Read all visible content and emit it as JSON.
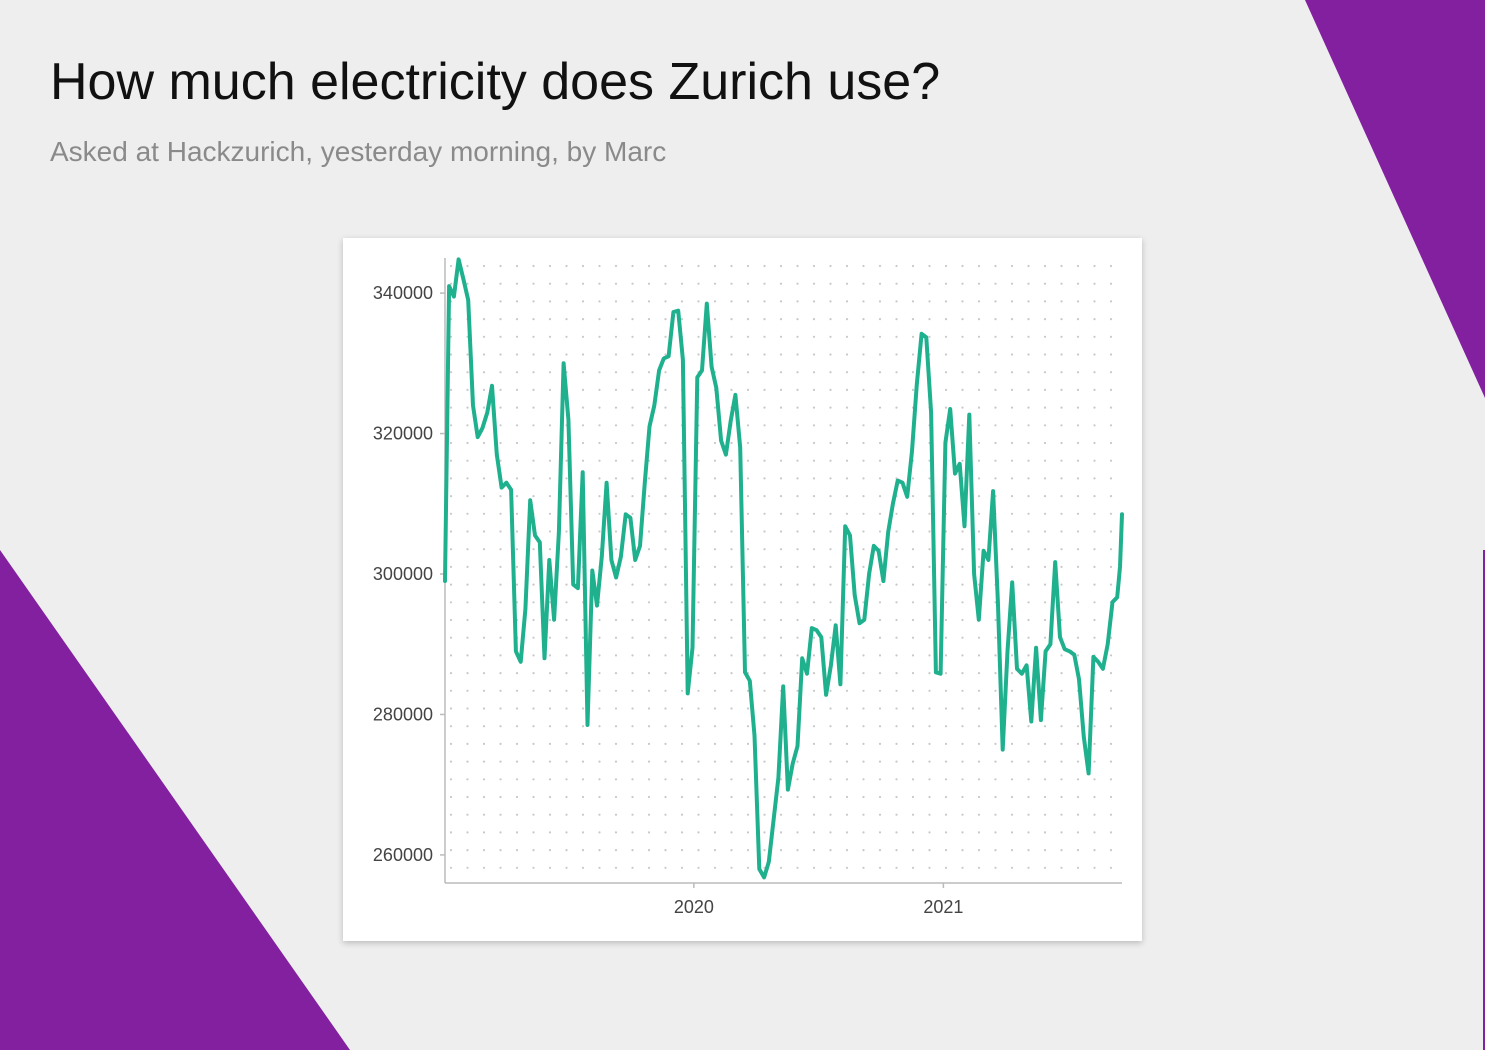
{
  "header": {
    "title": "How much electricity does Zurich use?",
    "subtitle": "Asked at Hackzurich, yesterday morning, by Marc"
  },
  "colors": {
    "background": "#eeeeee",
    "accent_purple": "#8220a0",
    "line": "#1fb08e",
    "grid_dots": "#c8c8c8"
  },
  "chart_data": {
    "type": "line",
    "title": "",
    "xlabel": "",
    "ylabel": "",
    "grid": "dotted",
    "x_ticks": [
      "2020",
      "2021"
    ],
    "y_ticks": [
      "260000",
      "280000",
      "300000",
      "320000",
      "340000"
    ],
    "ylim": [
      256000,
      345000
    ],
    "xlim": [
      "2019-01-01",
      "2021-09-20"
    ],
    "series": [
      {
        "values": [
          [
            "2019-01-01",
            299000
          ],
          [
            "2019-01-07",
            341000
          ],
          [
            "2019-01-14",
            339500
          ],
          [
            "2019-01-21",
            344800
          ],
          [
            "2019-01-28",
            342000
          ],
          [
            "2019-02-04",
            339000
          ],
          [
            "2019-02-11",
            324000
          ],
          [
            "2019-02-18",
            319500
          ],
          [
            "2019-02-25",
            320800
          ],
          [
            "2019-03-04",
            323000
          ],
          [
            "2019-03-11",
            326800
          ],
          [
            "2019-03-18",
            317000
          ],
          [
            "2019-03-25",
            312300
          ],
          [
            "2019-04-01",
            313000
          ],
          [
            "2019-04-08",
            312000
          ],
          [
            "2019-04-15",
            289000
          ],
          [
            "2019-04-22",
            287500
          ],
          [
            "2019-04-29",
            295000
          ],
          [
            "2019-05-06",
            310500
          ],
          [
            "2019-05-13",
            305500
          ],
          [
            "2019-05-20",
            304500
          ],
          [
            "2019-05-27",
            288000
          ],
          [
            "2019-06-03",
            302000
          ],
          [
            "2019-06-10",
            293500
          ],
          [
            "2019-06-17",
            306000
          ],
          [
            "2019-06-24",
            330000
          ],
          [
            "2019-07-01",
            322000
          ],
          [
            "2019-07-08",
            298500
          ],
          [
            "2019-07-15",
            298000
          ],
          [
            "2019-07-22",
            314500
          ],
          [
            "2019-07-29",
            278500
          ],
          [
            "2019-08-05",
            300500
          ],
          [
            "2019-08-12",
            295500
          ],
          [
            "2019-08-19",
            302500
          ],
          [
            "2019-08-26",
            313000
          ],
          [
            "2019-09-02",
            302000
          ],
          [
            "2019-09-09",
            299500
          ],
          [
            "2019-09-16",
            302500
          ],
          [
            "2019-09-23",
            308500
          ],
          [
            "2019-09-30",
            308000
          ],
          [
            "2019-10-07",
            302000
          ],
          [
            "2019-10-14",
            304000
          ],
          [
            "2019-10-21",
            313000
          ],
          [
            "2019-10-28",
            321000
          ],
          [
            "2019-11-04",
            324000
          ],
          [
            "2019-11-11",
            329000
          ],
          [
            "2019-11-18",
            330700
          ],
          [
            "2019-11-25",
            331000
          ],
          [
            "2019-12-02",
            337300
          ],
          [
            "2019-12-09",
            337500
          ],
          [
            "2019-12-16",
            330500
          ],
          [
            "2019-12-23",
            283000
          ],
          [
            "2019-12-30",
            289500
          ],
          [
            "2020-01-06",
            328000
          ],
          [
            "2020-01-13",
            329000
          ],
          [
            "2020-01-20",
            338500
          ],
          [
            "2020-01-27",
            329500
          ],
          [
            "2020-02-03",
            326500
          ],
          [
            "2020-02-10",
            319000
          ],
          [
            "2020-02-17",
            317000
          ],
          [
            "2020-02-24",
            321800
          ],
          [
            "2020-03-02",
            325500
          ],
          [
            "2020-03-09",
            318000
          ],
          [
            "2020-03-16",
            286000
          ],
          [
            "2020-03-23",
            284800
          ],
          [
            "2020-03-30",
            277000
          ],
          [
            "2020-04-06",
            258000
          ],
          [
            "2020-04-13",
            256800
          ],
          [
            "2020-04-20",
            259000
          ],
          [
            "2020-04-27",
            265000
          ],
          [
            "2020-05-04",
            271000
          ],
          [
            "2020-05-11",
            284000
          ],
          [
            "2020-05-18",
            269300
          ],
          [
            "2020-05-25",
            273000
          ],
          [
            "2020-06-01",
            275500
          ],
          [
            "2020-06-08",
            288000
          ],
          [
            "2020-06-15",
            285800
          ],
          [
            "2020-06-22",
            292300
          ],
          [
            "2020-06-29",
            292000
          ],
          [
            "2020-07-06",
            291000
          ],
          [
            "2020-07-13",
            282800
          ],
          [
            "2020-07-20",
            287000
          ],
          [
            "2020-07-27",
            292700
          ],
          [
            "2020-08-03",
            284300
          ],
          [
            "2020-08-10",
            306800
          ],
          [
            "2020-08-17",
            305500
          ],
          [
            "2020-08-24",
            297000
          ],
          [
            "2020-08-31",
            293000
          ],
          [
            "2020-09-07",
            293500
          ],
          [
            "2020-09-14",
            300000
          ],
          [
            "2020-09-21",
            304000
          ],
          [
            "2020-09-28",
            303300
          ],
          [
            "2020-10-05",
            299000
          ],
          [
            "2020-10-12",
            306000
          ],
          [
            "2020-10-19",
            310000
          ],
          [
            "2020-10-26",
            313300
          ],
          [
            "2020-11-02",
            313000
          ],
          [
            "2020-11-09",
            311000
          ],
          [
            "2020-11-16",
            317500
          ],
          [
            "2020-11-23",
            327000
          ],
          [
            "2020-11-30",
            334200
          ],
          [
            "2020-12-07",
            333700
          ],
          [
            "2020-12-14",
            323000
          ],
          [
            "2020-12-21",
            286000
          ],
          [
            "2020-12-28",
            285800
          ],
          [
            "2021-01-04",
            318700
          ],
          [
            "2021-01-11",
            323500
          ],
          [
            "2021-01-18",
            314300
          ],
          [
            "2021-01-25",
            315700
          ],
          [
            "2021-02-01",
            306800
          ],
          [
            "2021-02-08",
            322700
          ],
          [
            "2021-02-15",
            300000
          ],
          [
            "2021-02-22",
            293500
          ],
          [
            "2021-03-01",
            303300
          ],
          [
            "2021-03-08",
            302000
          ],
          [
            "2021-03-15",
            311800
          ],
          [
            "2021-03-22",
            296000
          ],
          [
            "2021-03-29",
            275000
          ],
          [
            "2021-04-05",
            289000
          ],
          [
            "2021-04-12",
            298800
          ],
          [
            "2021-04-19",
            286500
          ],
          [
            "2021-04-26",
            285800
          ],
          [
            "2021-05-03",
            287000
          ],
          [
            "2021-05-10",
            279000
          ],
          [
            "2021-05-17",
            289500
          ],
          [
            "2021-05-24",
            279200
          ],
          [
            "2021-05-31",
            289000
          ],
          [
            "2021-06-07",
            290000
          ],
          [
            "2021-06-14",
            301700
          ],
          [
            "2021-06-21",
            291000
          ],
          [
            "2021-06-28",
            289300
          ],
          [
            "2021-07-05",
            289000
          ],
          [
            "2021-07-12",
            288500
          ],
          [
            "2021-07-19",
            285000
          ],
          [
            "2021-07-26",
            276800
          ],
          [
            "2021-08-02",
            271600
          ],
          [
            "2021-08-09",
            288200
          ],
          [
            "2021-08-16",
            287500
          ],
          [
            "2021-08-23",
            286500
          ],
          [
            "2021-08-30",
            290000
          ],
          [
            "2021-09-06",
            296000
          ],
          [
            "2021-09-13",
            296700
          ],
          [
            "2021-09-17",
            301000
          ],
          [
            "2021-09-20",
            308500
          ]
        ]
      }
    ]
  }
}
